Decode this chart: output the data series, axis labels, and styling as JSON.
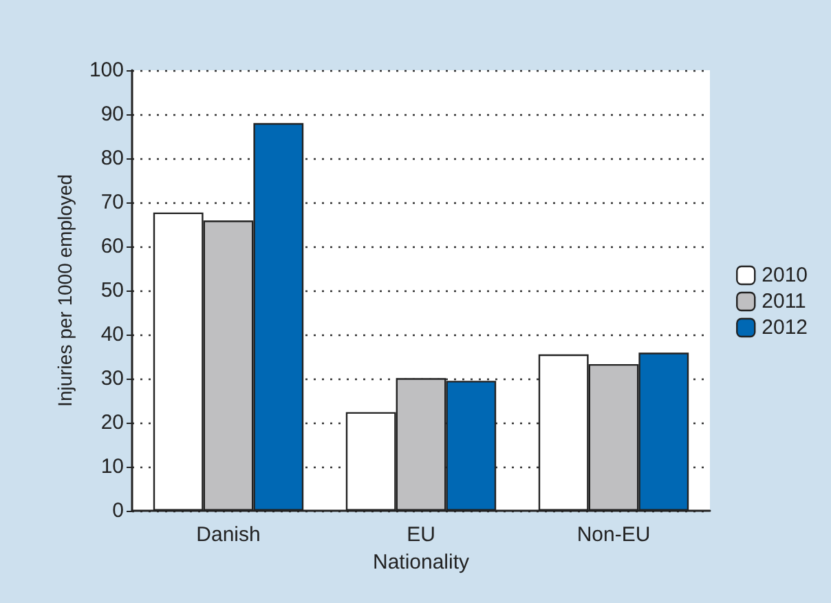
{
  "chart_data": {
    "type": "bar",
    "xlabel": "Nationality",
    "ylabel": "Injuries per 1000 employed",
    "categories": [
      "Danish",
      "EU",
      "Non-EU"
    ],
    "series": [
      {
        "name": "2010",
        "color": "#ffffff",
        "values": [
          67.7,
          22.4,
          35.5
        ]
      },
      {
        "name": "2011",
        "color": "#bfbfc1",
        "values": [
          65.9,
          30.1,
          33.3
        ]
      },
      {
        "name": "2012",
        "color": "#0068b4",
        "values": [
          88,
          29.5,
          35.9
        ]
      }
    ],
    "ylim": [
      0,
      100
    ],
    "yticks": [
      0,
      10,
      20,
      30,
      40,
      50,
      60,
      70,
      80,
      90,
      100
    ],
    "grid": "y",
    "legend": "right"
  }
}
